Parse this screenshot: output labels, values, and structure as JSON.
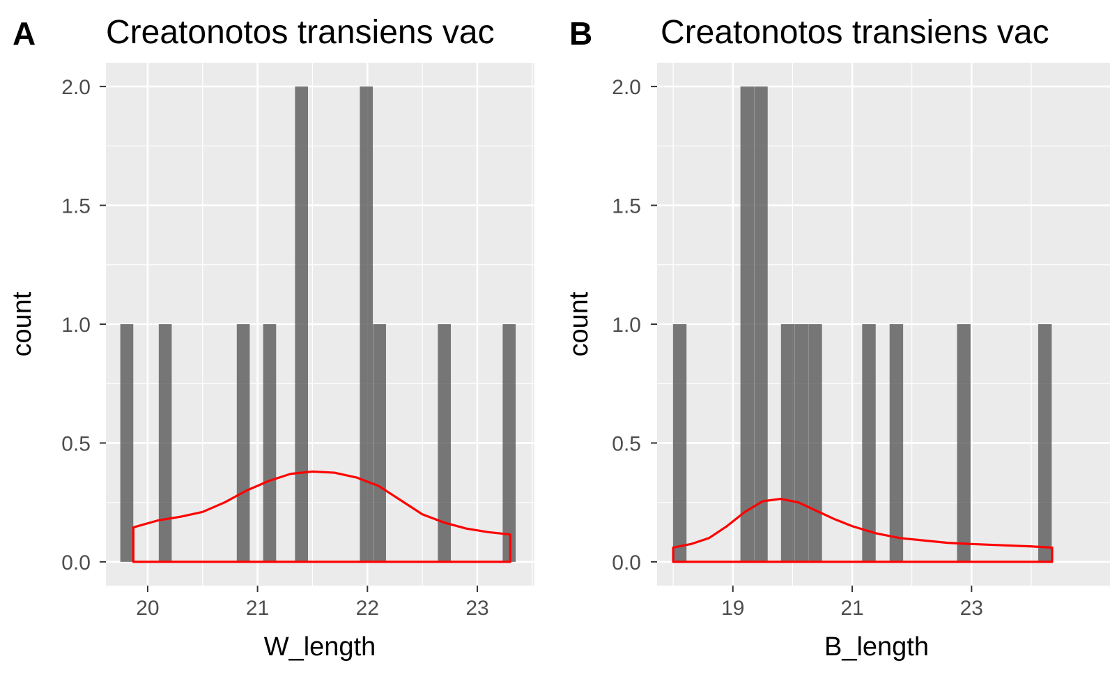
{
  "colors": {
    "panel_background": "#ebebeb",
    "grid": "#ffffff",
    "bar_fill": "#595959",
    "density_line": "#ff0000",
    "tick_text": "#4d4d4d"
  },
  "chart_data": [
    {
      "type": "bar",
      "tag": "A",
      "title": "Creatonotos transiens vac",
      "xlabel": "W_length",
      "ylabel": "count",
      "xlim": [
        19.62,
        23.52
      ],
      "ylim": [
        -0.1,
        2.1
      ],
      "xticks": [
        20,
        21,
        22,
        23
      ],
      "xtick_labels": [
        "20",
        "21",
        "22",
        "23"
      ],
      "yticks": [
        0.0,
        0.5,
        1.0,
        1.5,
        2.0
      ],
      "ytick_labels": [
        "0.0",
        "0.5",
        "1.0",
        "1.5",
        "2.0"
      ],
      "grid": true,
      "bin_width": 0.118,
      "bars": [
        {
          "x": 19.81,
          "count": 1
        },
        {
          "x": 20.16,
          "count": 1
        },
        {
          "x": 20.87,
          "count": 1
        },
        {
          "x": 21.11,
          "count": 1
        },
        {
          "x": 21.4,
          "count": 2
        },
        {
          "x": 21.99,
          "count": 2
        },
        {
          "x": 22.11,
          "count": 1
        },
        {
          "x": 22.7,
          "count": 1
        },
        {
          "x": 23.29,
          "count": 1
        }
      ],
      "density": {
        "x": [
          19.87,
          20.1,
          20.3,
          20.5,
          20.7,
          20.9,
          21.1,
          21.3,
          21.5,
          21.7,
          21.9,
          22.1,
          22.3,
          22.5,
          22.7,
          22.9,
          23.1,
          23.3
        ],
        "y": [
          0.145,
          0.175,
          0.19,
          0.21,
          0.25,
          0.3,
          0.34,
          0.37,
          0.38,
          0.375,
          0.355,
          0.32,
          0.26,
          0.2,
          0.165,
          0.14,
          0.125,
          0.115
        ]
      }
    },
    {
      "type": "bar",
      "tag": "B",
      "title": "Creatonotos transiens vac",
      "xlabel": "B_length",
      "ylabel": "count",
      "xlim": [
        17.73,
        25.32
      ],
      "ylim": [
        -0.1,
        2.1
      ],
      "xticks": [
        19,
        21,
        23
      ],
      "xtick_labels": [
        "19",
        "21",
        "23"
      ],
      "yticks": [
        0.0,
        0.5,
        1.0,
        1.5,
        2.0
      ],
      "ytick_labels": [
        "0.0",
        "0.5",
        "1.0",
        "1.5",
        "2.0"
      ],
      "grid": true,
      "bin_width": 0.227,
      "bars": [
        {
          "x": 18.11,
          "count": 1
        },
        {
          "x": 19.24,
          "count": 2
        },
        {
          "x": 19.47,
          "count": 2
        },
        {
          "x": 19.92,
          "count": 1
        },
        {
          "x": 20.15,
          "count": 1
        },
        {
          "x": 20.38,
          "count": 1
        },
        {
          "x": 21.28,
          "count": 1
        },
        {
          "x": 21.74,
          "count": 1
        },
        {
          "x": 22.87,
          "count": 1
        },
        {
          "x": 24.23,
          "count": 1
        }
      ],
      "density": {
        "x": [
          18.0,
          18.3,
          18.6,
          18.9,
          19.2,
          19.5,
          19.8,
          20.1,
          20.4,
          20.7,
          21.0,
          21.4,
          21.8,
          22.2,
          22.6,
          23.0,
          23.5,
          24.0,
          24.35
        ],
        "y": [
          0.06,
          0.075,
          0.1,
          0.15,
          0.21,
          0.255,
          0.265,
          0.25,
          0.215,
          0.18,
          0.15,
          0.12,
          0.1,
          0.09,
          0.08,
          0.075,
          0.07,
          0.065,
          0.06
        ]
      }
    }
  ]
}
